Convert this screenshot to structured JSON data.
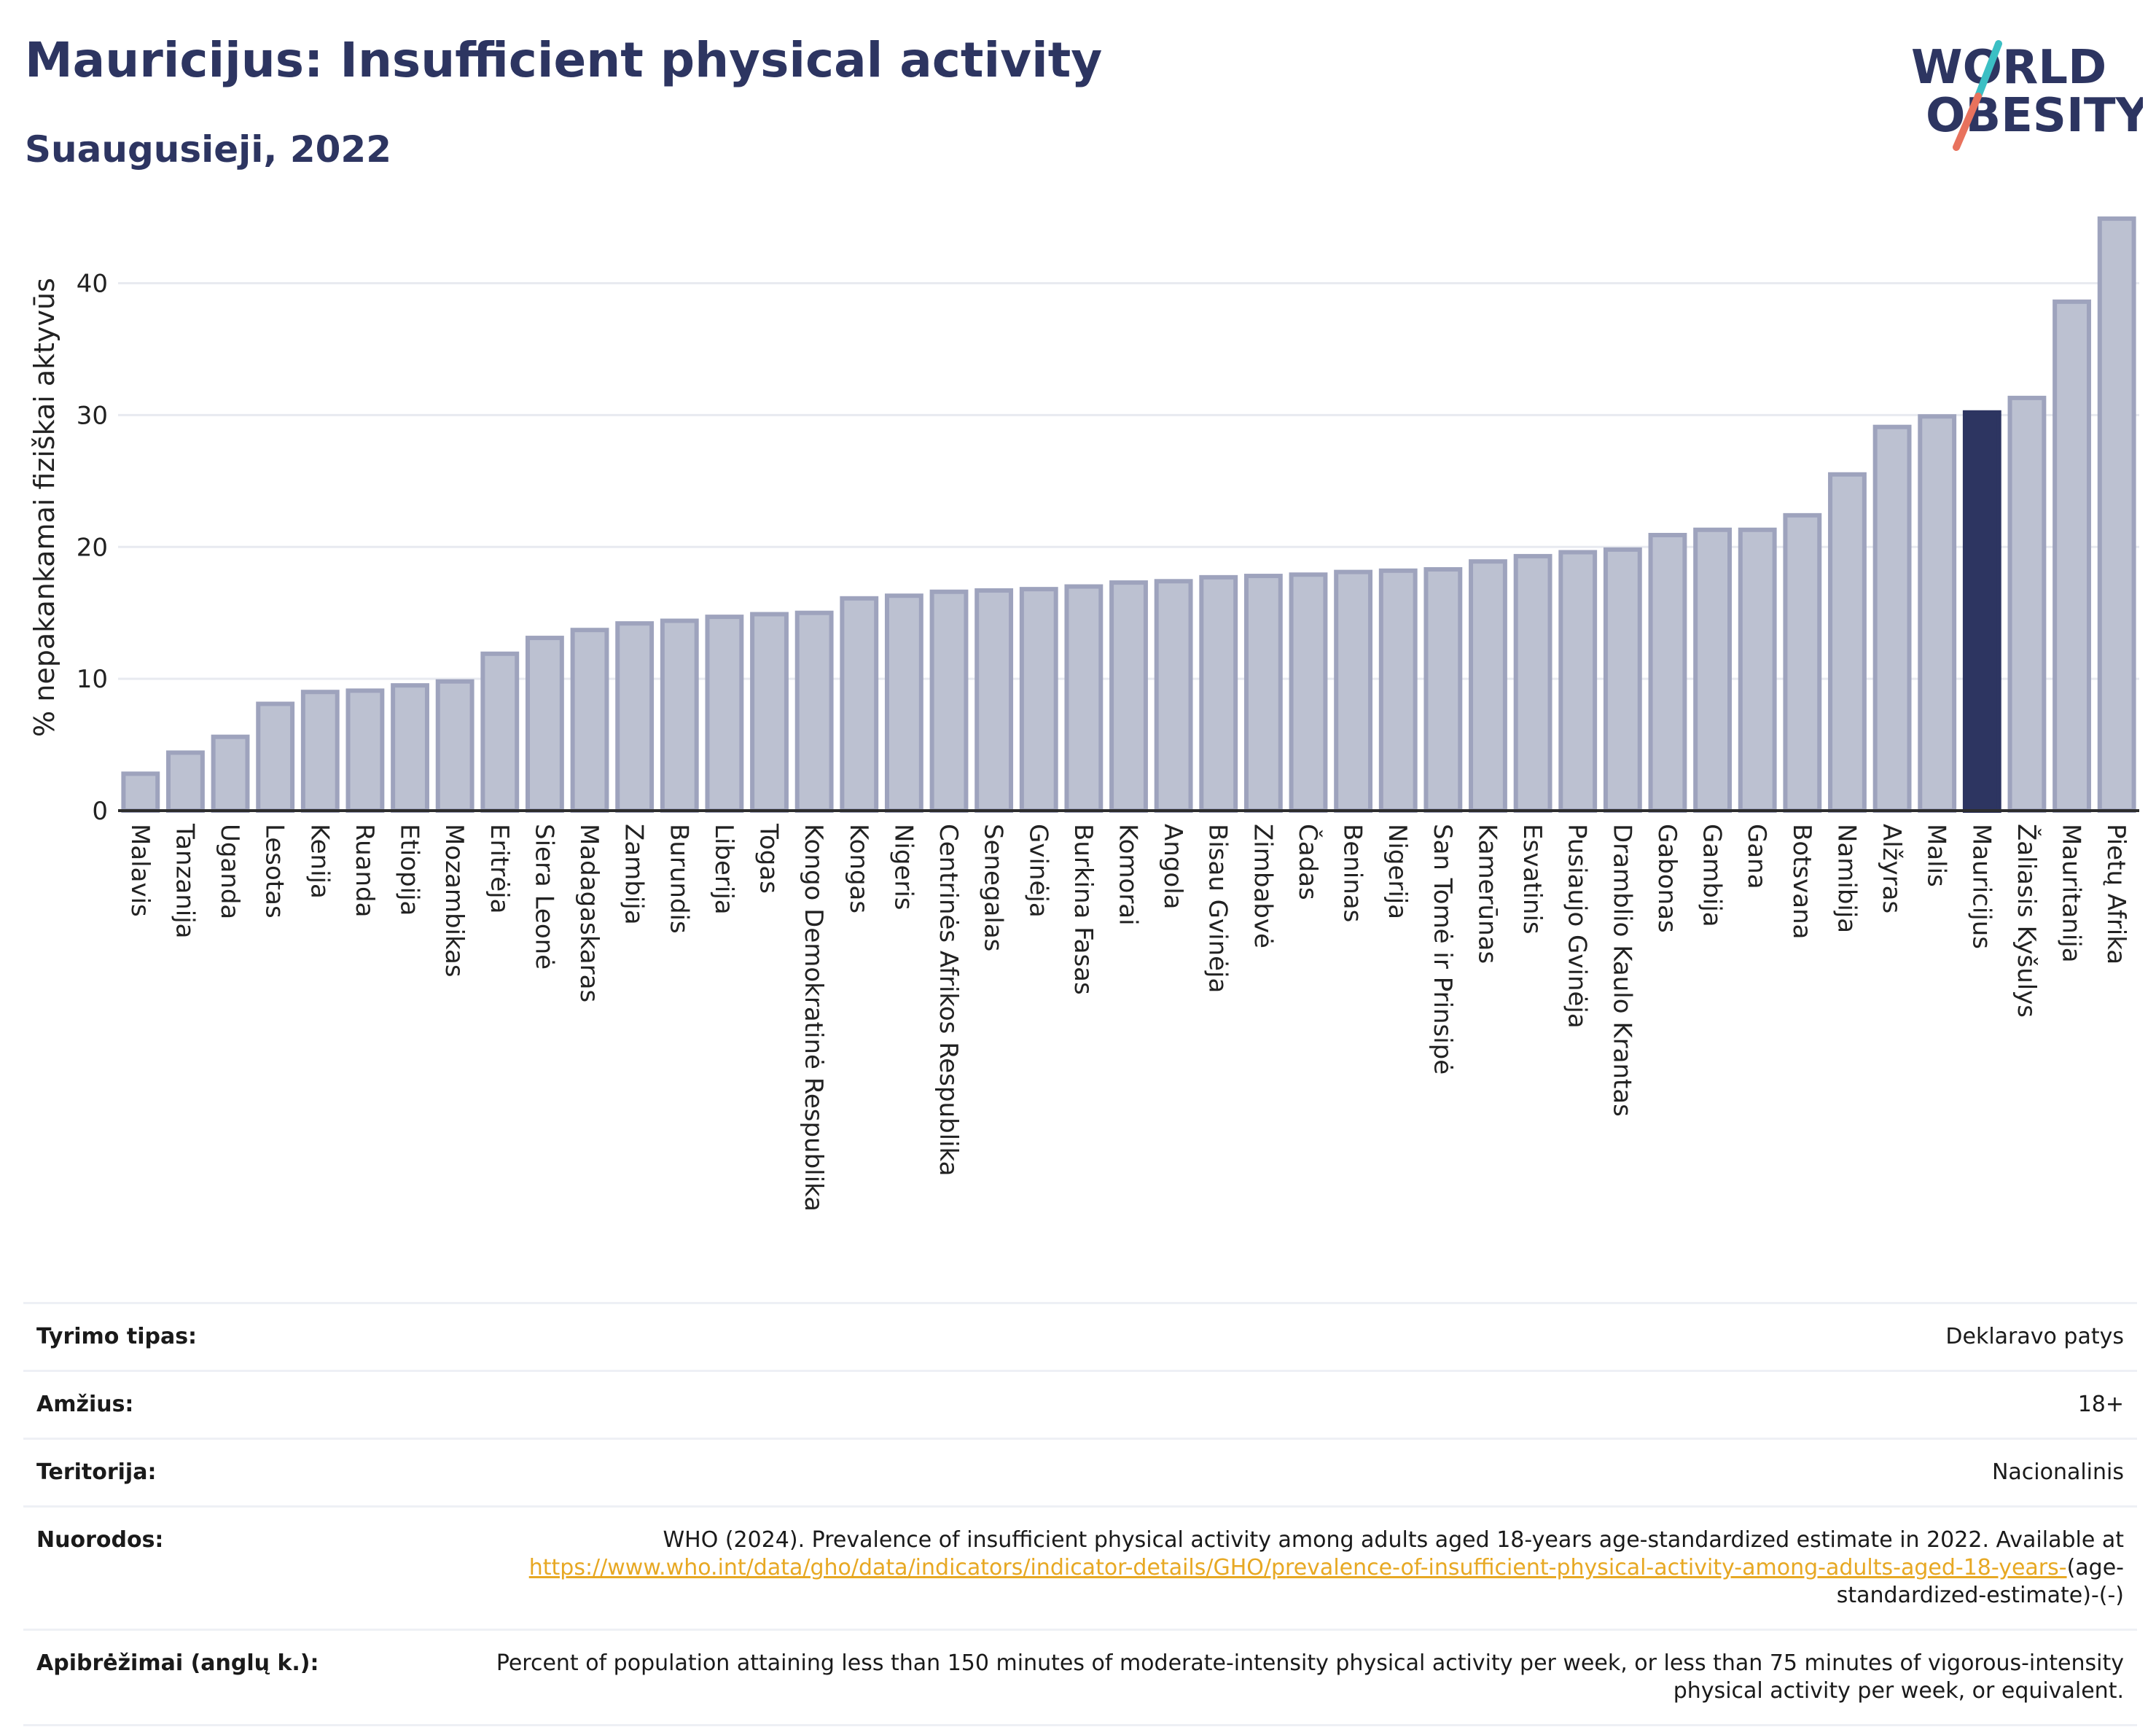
{
  "header": {
    "title": "Mauricijus: Insufficient physical activity",
    "subtitle": "Suaugusieji, 2022"
  },
  "logo": {
    "line1": "WORLD",
    "line2": "OBESITY"
  },
  "chart_data": {
    "type": "bar",
    "ylabel": "% nepakankamai fiziškai aktyvūs",
    "xlabel": "",
    "ylim": [
      0,
      46
    ],
    "yticks": [
      0,
      10,
      20,
      30,
      40
    ],
    "grid": true,
    "highlight": "Mauricijus",
    "colors": {
      "bar": "#bcc1d1",
      "bar_border": "#9ea3bd",
      "highlight": "#2d3561",
      "axis": "#2d2d2d",
      "grid": "#e8eaf0"
    },
    "categories": [
      "Malavis",
      "Tanzanija",
      "Uganda",
      "Lesotas",
      "Kenija",
      "Ruanda",
      "Etiopija",
      "Mozambikas",
      "Eritrėja",
      "Siera Leonė",
      "Madagaskaras",
      "Zambija",
      "Burundis",
      "Liberija",
      "Togas",
      "Kongo Demokratinė Respublika",
      "Kongas",
      "Nigeris",
      "Centrinės Afrikos Respublika",
      "Senegalas",
      "Gvinėja",
      "Burkina Fasas",
      "Komorai",
      "Angola",
      "Bisau Gvinėja",
      "Zimbabvė",
      "Čadas",
      "Beninas",
      "Nigerija",
      "San Tomė ir Prinsipė",
      "Kamerūnas",
      "Esvatinis",
      "Pusiaujo Gvinėja",
      "Dramblio Kaulo Krantas",
      "Gabonas",
      "Gambija",
      "Gana",
      "Botsvana",
      "Namibija",
      "Alžyras",
      "Malis",
      "Mauricijus",
      "Žaliasis Kyšulys",
      "Mauritanija",
      "Pietų Afrika"
    ],
    "values": [
      2.8,
      4.4,
      5.6,
      8.1,
      9.0,
      9.1,
      9.5,
      9.8,
      11.9,
      13.1,
      13.7,
      14.2,
      14.4,
      14.7,
      14.9,
      15.0,
      16.1,
      16.3,
      16.6,
      16.7,
      16.8,
      17.0,
      17.3,
      17.4,
      17.7,
      17.8,
      17.9,
      18.1,
      18.2,
      18.3,
      18.9,
      19.3,
      19.6,
      19.8,
      20.9,
      21.3,
      21.3,
      22.4,
      25.5,
      29.1,
      29.9,
      30.2,
      31.3,
      38.6,
      44.9
    ]
  },
  "meta": {
    "rows": [
      {
        "label": "Tyrimo tipas:",
        "value": "Deklaravo patys"
      },
      {
        "label": "Amžius:",
        "value": "18+"
      },
      {
        "label": "Teritorija:",
        "value": "Nacionalinis"
      }
    ],
    "ref": {
      "label": "Nuorodos:",
      "text": "WHO (2024). Prevalence of insufficient physical activity among adults aged 18-years age-standardized estimate in 2022. Available at",
      "link": "https://www.who.int/data/gho/data/indicators/indicator-details/GHO/prevalence-of-insufficient-physical-activity-among-adults-aged-18-years-",
      "suffix": "(age-standardized-estimate)-(-)"
    },
    "def": {
      "label": "Apibrėžimai (anglų k.):",
      "value": "Percent of population attaining less than 150 minutes of moderate-intensity physical activity per week, or less than 75 minutes of vigorous-intensity physical activity per week, or equivalent."
    }
  }
}
